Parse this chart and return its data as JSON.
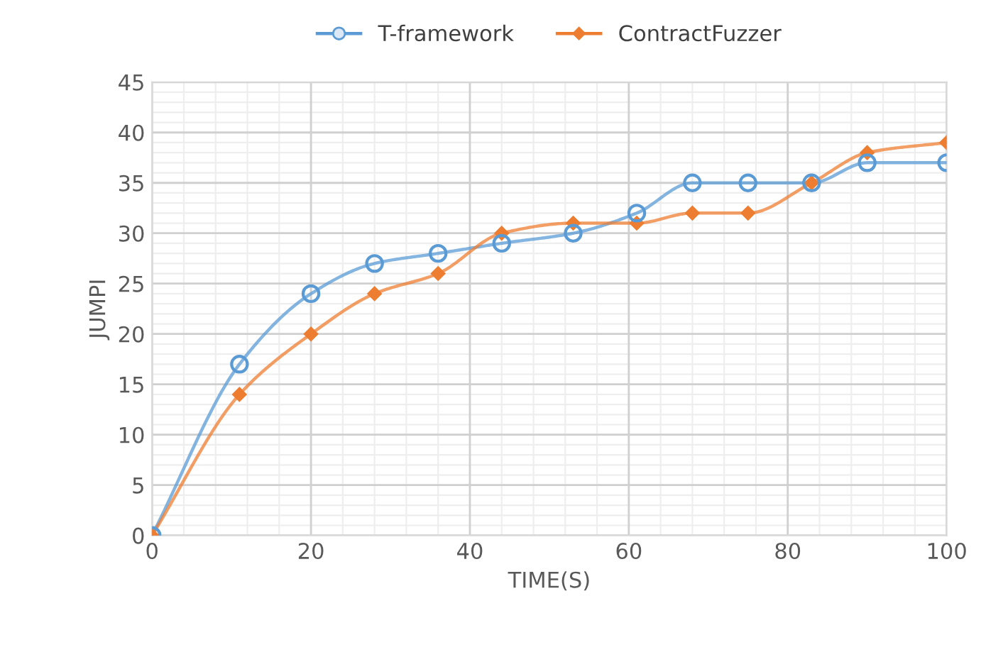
{
  "chart_data": {
    "type": "line",
    "xlabel": "TIME(S)",
    "ylabel": "JUMPI",
    "series": [
      {
        "name": "T-framework",
        "color": "#5b9bd5",
        "marker": "circle",
        "x": [
          0,
          11,
          20,
          28,
          36,
          44,
          53,
          61,
          68,
          75,
          83,
          90,
          100
        ],
        "values": [
          0,
          17,
          24,
          27,
          28,
          29,
          30,
          32,
          35,
          35,
          35,
          37,
          37
        ]
      },
      {
        "name": "ContractFuzzer",
        "color": "#ed7d31",
        "marker": "diamond",
        "x": [
          0,
          11,
          20,
          28,
          36,
          44,
          53,
          61,
          68,
          75,
          83,
          90,
          100
        ],
        "values": [
          0,
          14,
          20,
          24,
          26,
          30,
          31,
          31,
          32,
          32,
          35,
          38,
          39
        ]
      }
    ],
    "xlim": [
      0,
      100
    ],
    "xticks": [
      0,
      20,
      40,
      60,
      80,
      100
    ],
    "ylim": [
      0,
      45
    ],
    "yticks": [
      0,
      5,
      10,
      15,
      20,
      25,
      30,
      35,
      40,
      45
    ],
    "grid": true,
    "legend": "top",
    "line_style": "solid"
  }
}
